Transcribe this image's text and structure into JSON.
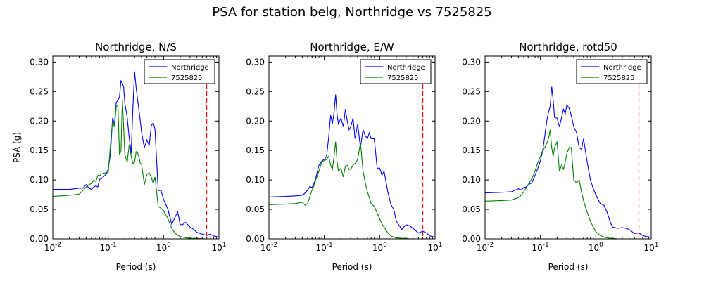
{
  "suptitle": "PSA for station belg, Northridge vs 7525825",
  "colors": {
    "series1": "#0000ff",
    "series2": "#008000",
    "cutoff": "#ff0000"
  },
  "chart_data": [
    {
      "type": "line",
      "title": "Northridge, N/S",
      "xlabel": "Period (s)",
      "ylabel": "PSA (g)",
      "xscale": "log",
      "xlim": [
        0.01,
        10
      ],
      "ylim": [
        0,
        0.31
      ],
      "xticks": [
        {
          "v": 0.01,
          "b": "10",
          "e": "-2"
        },
        {
          "v": 0.1,
          "b": "10",
          "e": "-1"
        },
        {
          "v": 1,
          "b": "10",
          "e": "0"
        },
        {
          "v": 10,
          "b": "10",
          "e": "1"
        }
      ],
      "yticks": [
        "0.00",
        "0.05",
        "0.10",
        "0.15",
        "0.20",
        "0.25",
        "0.30"
      ],
      "legend": {
        "position": "top-right",
        "entries": [
          "Northridge",
          "7525825"
        ]
      },
      "cutoff_period": 6.0,
      "series": [
        {
          "name": "Northridge",
          "x": [
            0.01,
            0.02,
            0.03,
            0.035,
            0.04,
            0.045,
            0.05,
            0.055,
            0.06,
            0.065,
            0.07,
            0.075,
            0.08,
            0.09,
            0.1,
            0.11,
            0.12,
            0.13,
            0.14,
            0.15,
            0.16,
            0.17,
            0.18,
            0.19,
            0.2,
            0.22,
            0.24,
            0.26,
            0.28,
            0.3,
            0.32,
            0.34,
            0.36,
            0.38,
            0.4,
            0.45,
            0.5,
            0.55,
            0.6,
            0.65,
            0.7,
            0.8,
            0.9,
            1.0,
            1.2,
            1.4,
            1.6,
            1.8,
            2.0,
            2.2,
            2.5,
            3.0,
            3.5,
            4.0,
            5.0,
            6.0,
            7.0,
            8.0,
            10.0
          ],
          "y": [
            0.084,
            0.084,
            0.086,
            0.086,
            0.092,
            0.086,
            0.084,
            0.088,
            0.09,
            0.088,
            0.101,
            0.102,
            0.104,
            0.109,
            0.118,
            0.145,
            0.205,
            0.195,
            0.232,
            0.235,
            0.241,
            0.268,
            0.264,
            0.258,
            0.23,
            0.207,
            0.171,
            0.145,
            0.225,
            0.284,
            0.256,
            0.236,
            0.218,
            0.2,
            0.181,
            0.155,
            0.168,
            0.158,
            0.192,
            0.197,
            0.186,
            0.082,
            0.082,
            0.067,
            0.05,
            0.025,
            0.036,
            0.046,
            0.024,
            0.024,
            0.028,
            0.02,
            0.016,
            0.011,
            0.008,
            0.006,
            0.008,
            0.005,
            0.003
          ]
        },
        {
          "name": "7525825",
          "x": [
            0.01,
            0.02,
            0.03,
            0.035,
            0.04,
            0.045,
            0.05,
            0.055,
            0.06,
            0.065,
            0.07,
            0.075,
            0.08,
            0.09,
            0.1,
            0.11,
            0.12,
            0.13,
            0.14,
            0.15,
            0.16,
            0.17,
            0.18,
            0.19,
            0.2,
            0.22,
            0.24,
            0.26,
            0.28,
            0.3,
            0.32,
            0.34,
            0.36,
            0.38,
            0.4,
            0.45,
            0.5,
            0.55,
            0.6,
            0.65,
            0.7,
            0.8,
            0.9,
            1.0,
            1.2,
            1.4,
            1.6,
            1.8,
            2.0,
            2.2,
            2.5,
            3.0,
            3.5,
            4.0,
            5.0,
            6.0,
            7.0,
            8.0,
            10.0
          ],
          "y": [
            0.072,
            0.074,
            0.076,
            0.082,
            0.088,
            0.092,
            0.094,
            0.1,
            0.097,
            0.108,
            0.107,
            0.11,
            0.111,
            0.112,
            0.112,
            0.16,
            0.2,
            0.19,
            0.225,
            0.226,
            0.144,
            0.148,
            0.237,
            0.19,
            0.143,
            0.13,
            0.16,
            0.14,
            0.128,
            0.13,
            0.148,
            0.146,
            0.138,
            0.128,
            0.127,
            0.092,
            0.11,
            0.112,
            0.105,
            0.094,
            0.105,
            0.055,
            0.052,
            0.048,
            0.034,
            0.018,
            0.01,
            0.006,
            0.004,
            0.003,
            0.002,
            0.001,
            0.001,
            0.001,
            0.0,
            0.0,
            0.0,
            0.0,
            0.0
          ]
        }
      ]
    },
    {
      "type": "line",
      "title": "Northridge, E/W",
      "xlabel": "Period (s)",
      "ylabel": "",
      "xscale": "log",
      "xlim": [
        0.01,
        10
      ],
      "ylim": [
        0,
        0.31
      ],
      "xticks": [
        {
          "v": 0.01,
          "b": "10",
          "e": "-2"
        },
        {
          "v": 0.1,
          "b": "10",
          "e": "-1"
        },
        {
          "v": 1,
          "b": "10",
          "e": "0"
        },
        {
          "v": 10,
          "b": "10",
          "e": "1"
        }
      ],
      "yticks": [
        "0.00",
        "0.05",
        "0.10",
        "0.15",
        "0.20",
        "0.25",
        "0.30"
      ],
      "legend": {
        "position": "top-right",
        "entries": [
          "Northridge",
          "7525825"
        ]
      },
      "cutoff_period": 6.0,
      "series": [
        {
          "name": "Northridge",
          "x": [
            0.01,
            0.02,
            0.03,
            0.04,
            0.045,
            0.05,
            0.055,
            0.06,
            0.065,
            0.07,
            0.08,
            0.09,
            0.1,
            0.11,
            0.12,
            0.13,
            0.14,
            0.15,
            0.16,
            0.17,
            0.18,
            0.2,
            0.22,
            0.24,
            0.26,
            0.28,
            0.3,
            0.33,
            0.36,
            0.4,
            0.45,
            0.5,
            0.55,
            0.6,
            0.65,
            0.7,
            0.8,
            0.9,
            1.0,
            1.1,
            1.2,
            1.4,
            1.6,
            1.8,
            2.0,
            2.5,
            3.0,
            3.5,
            4.0,
            5.0,
            6.0,
            7.0,
            8.0,
            10.0
          ],
          "y": [
            0.071,
            0.072,
            0.073,
            0.074,
            0.078,
            0.083,
            0.089,
            0.087,
            0.094,
            0.103,
            0.125,
            0.132,
            0.135,
            0.14,
            0.173,
            0.21,
            0.195,
            0.215,
            0.245,
            0.21,
            0.195,
            0.205,
            0.19,
            0.22,
            0.2,
            0.185,
            0.19,
            0.205,
            0.17,
            0.195,
            0.155,
            0.185,
            0.175,
            0.17,
            0.18,
            0.17,
            0.17,
            0.12,
            0.12,
            0.108,
            0.115,
            0.08,
            0.058,
            0.05,
            0.03,
            0.016,
            0.024,
            0.022,
            0.018,
            0.01,
            0.013,
            0.01,
            0.005,
            0.003
          ]
        },
        {
          "name": "7525825",
          "x": [
            0.01,
            0.02,
            0.03,
            0.04,
            0.045,
            0.05,
            0.055,
            0.06,
            0.065,
            0.07,
            0.08,
            0.09,
            0.1,
            0.11,
            0.12,
            0.13,
            0.14,
            0.15,
            0.16,
            0.17,
            0.18,
            0.2,
            0.22,
            0.24,
            0.26,
            0.28,
            0.3,
            0.33,
            0.36,
            0.4,
            0.45,
            0.5,
            0.55,
            0.6,
            0.65,
            0.7,
            0.8,
            0.9,
            1.0,
            1.1,
            1.2,
            1.4,
            1.6,
            1.8,
            2.0,
            2.5,
            3.0,
            3.5,
            4.0,
            5.0,
            6.0,
            7.0,
            8.0,
            10.0
          ],
          "y": [
            0.058,
            0.059,
            0.06,
            0.062,
            0.057,
            0.06,
            0.072,
            0.083,
            0.09,
            0.1,
            0.115,
            0.13,
            0.133,
            0.135,
            0.14,
            0.125,
            0.118,
            0.14,
            0.165,
            0.13,
            0.115,
            0.12,
            0.105,
            0.123,
            0.125,
            0.118,
            0.118,
            0.125,
            0.128,
            0.135,
            0.163,
            0.115,
            0.095,
            0.08,
            0.07,
            0.06,
            0.055,
            0.044,
            0.034,
            0.025,
            0.02,
            0.01,
            0.005,
            0.003,
            0.002,
            0.001,
            0.001,
            0.0,
            0.0,
            0.0,
            0.0,
            0.0,
            0.0,
            0.0
          ]
        }
      ]
    },
    {
      "type": "line",
      "title": "Northridge, rotd50",
      "xlabel": "Period (s)",
      "ylabel": "",
      "xscale": "log",
      "xlim": [
        0.01,
        10
      ],
      "ylim": [
        0,
        0.31
      ],
      "xticks": [
        {
          "v": 0.01,
          "b": "10",
          "e": "-2"
        },
        {
          "v": 0.1,
          "b": "10",
          "e": "-1"
        },
        {
          "v": 1,
          "b": "10",
          "e": "0"
        },
        {
          "v": 10,
          "b": "10",
          "e": "1"
        }
      ],
      "yticks": [
        "0.00",
        "0.05",
        "0.10",
        "0.15",
        "0.20",
        "0.25",
        "0.30"
      ],
      "legend": {
        "position": "top-right",
        "entries": [
          "Northridge",
          "7525825"
        ]
      },
      "cutoff_period": 6.0,
      "series": [
        {
          "name": "Northridge",
          "x": [
            0.01,
            0.02,
            0.03,
            0.04,
            0.045,
            0.05,
            0.055,
            0.06,
            0.07,
            0.08,
            0.09,
            0.1,
            0.11,
            0.12,
            0.13,
            0.14,
            0.15,
            0.16,
            0.17,
            0.18,
            0.2,
            0.22,
            0.24,
            0.26,
            0.28,
            0.3,
            0.33,
            0.36,
            0.4,
            0.45,
            0.5,
            0.55,
            0.6,
            0.7,
            0.8,
            0.9,
            1.0,
            1.2,
            1.4,
            1.6,
            1.8,
            2.0,
            2.5,
            3.0,
            3.5,
            4.0,
            5.0,
            6.0,
            7.0,
            8.0,
            10.0
          ],
          "y": [
            0.078,
            0.079,
            0.08,
            0.085,
            0.083,
            0.087,
            0.088,
            0.092,
            0.095,
            0.108,
            0.12,
            0.133,
            0.15,
            0.175,
            0.2,
            0.215,
            0.225,
            0.258,
            0.235,
            0.206,
            0.205,
            0.19,
            0.205,
            0.22,
            0.212,
            0.227,
            0.222,
            0.21,
            0.19,
            0.18,
            0.155,
            0.152,
            0.17,
            0.13,
            0.1,
            0.085,
            0.075,
            0.06,
            0.057,
            0.045,
            0.03,
            0.02,
            0.018,
            0.019,
            0.018,
            0.016,
            0.009,
            0.01,
            0.006,
            0.004,
            0.003
          ]
        },
        {
          "name": "7525825",
          "x": [
            0.01,
            0.02,
            0.03,
            0.04,
            0.045,
            0.05,
            0.055,
            0.06,
            0.07,
            0.08,
            0.09,
            0.1,
            0.11,
            0.12,
            0.13,
            0.14,
            0.15,
            0.16,
            0.17,
            0.18,
            0.2,
            0.22,
            0.24,
            0.26,
            0.28,
            0.3,
            0.33,
            0.36,
            0.4,
            0.45,
            0.5,
            0.55,
            0.6,
            0.7,
            0.8,
            0.9,
            1.0,
            1.2,
            1.4,
            1.6,
            1.8,
            2.0,
            2.5,
            3.0,
            3.5,
            4.0,
            5.0,
            6.0,
            7.0,
            8.0,
            10.0
          ],
          "y": [
            0.064,
            0.065,
            0.066,
            0.07,
            0.074,
            0.08,
            0.086,
            0.092,
            0.102,
            0.115,
            0.13,
            0.14,
            0.15,
            0.155,
            0.162,
            0.17,
            0.185,
            0.155,
            0.14,
            0.155,
            0.165,
            0.115,
            0.125,
            0.118,
            0.13,
            0.145,
            0.155,
            0.155,
            0.1,
            0.095,
            0.1,
            0.08,
            0.065,
            0.045,
            0.03,
            0.02,
            0.012,
            0.006,
            0.003,
            0.002,
            0.001,
            0.001,
            0.0,
            0.0,
            0.0,
            0.0,
            0.0,
            0.0,
            0.0,
            0.0,
            0.0
          ]
        }
      ]
    }
  ]
}
